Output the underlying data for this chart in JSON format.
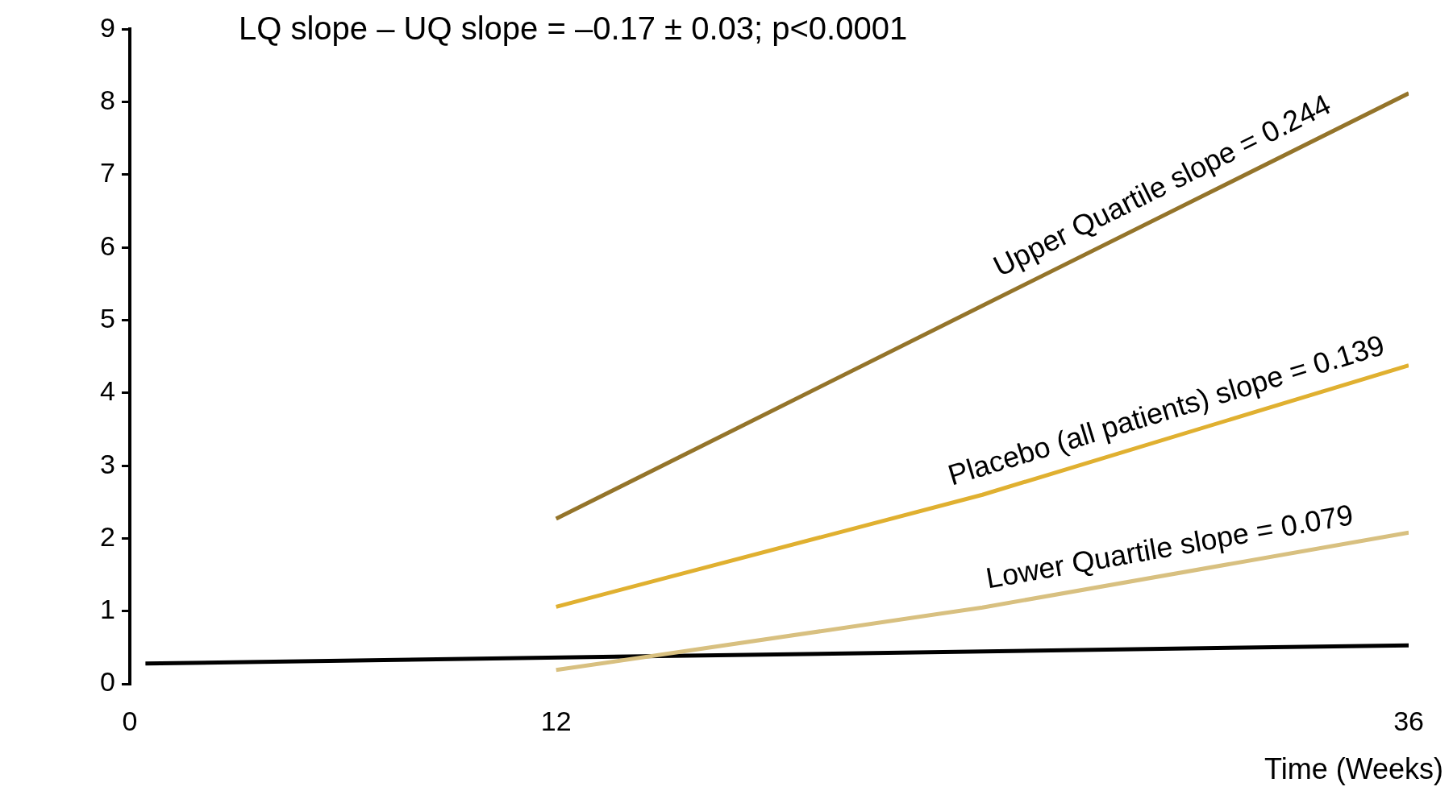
{
  "chart_data": {
    "type": "line",
    "title": "LQ slope – UQ slope = –0.17 ± 0.03; p<0.0001",
    "xlabel": "Time (Weeks)",
    "xlim": [
      0,
      36
    ],
    "xticks": [
      0,
      12,
      36
    ],
    "ylim": [
      0,
      9
    ],
    "yticks": [
      0,
      1,
      2,
      3,
      4,
      5,
      6,
      7,
      8,
      9
    ],
    "grid": false,
    "legend": false,
    "marker": "none",
    "line_style": "solid",
    "series": [
      {
        "color": "#94742a",
        "x": [
          12,
          24,
          36
        ],
        "values": [
          2.27,
          5.2,
          8.12
        ]
      },
      {
        "color": "#e0b030",
        "x": [
          12,
          24,
          36
        ],
        "values": [
          1.06,
          2.6,
          4.38
        ]
      },
      {
        "color": "#d8c080",
        "x": [
          12,
          24,
          36
        ],
        "values": [
          0.19,
          1.05,
          2.08
        ]
      },
      {
        "color": "#000000",
        "x": [
          0.44,
          36
        ],
        "values": [
          0.28,
          0.53
        ]
      }
    ],
    "annotations": [
      "Upper Quartile slope = 0.244",
      "Placebo (all patients) slope = 0.139",
      "Lower Quartile slope = 0.079"
    ]
  }
}
